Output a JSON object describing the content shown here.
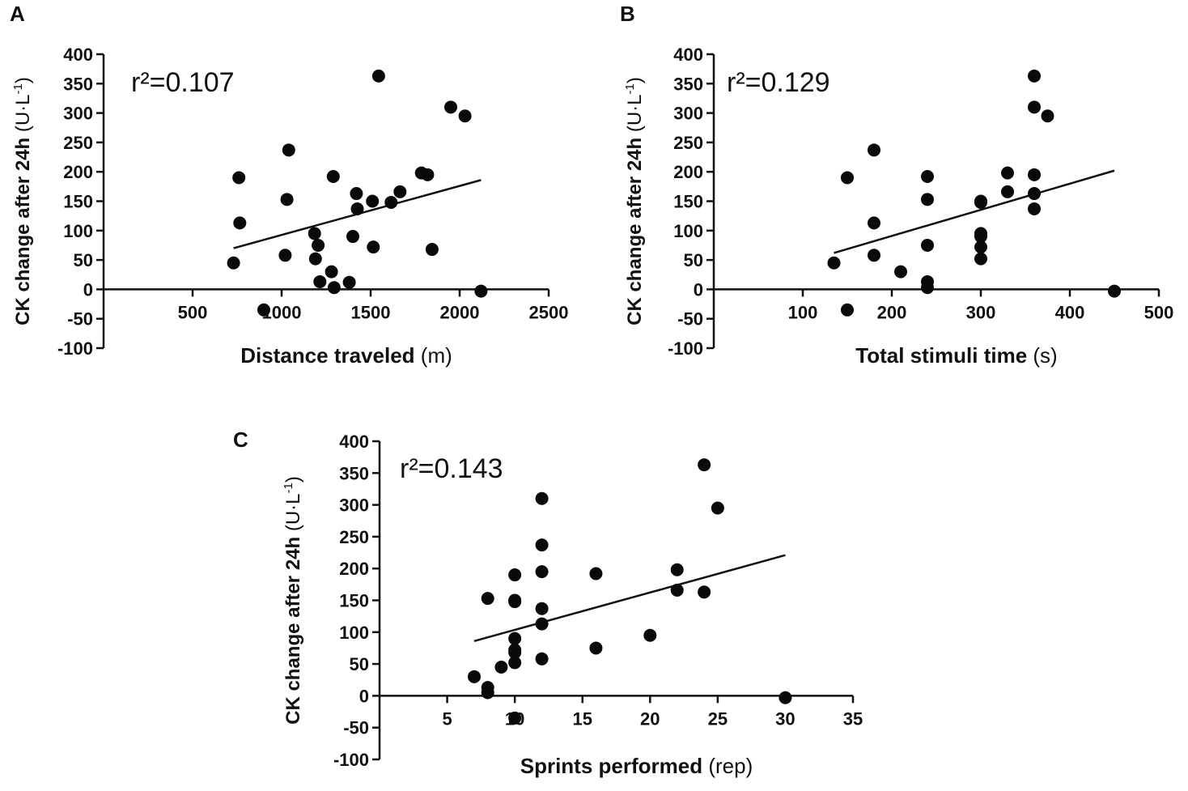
{
  "chart_data": [
    {
      "type": "scatter",
      "panel": "A",
      "annotation": "r²=0.107",
      "xlabel": "Distance traveled",
      "xlabel_unit": "(m)",
      "ylabel": "CK change after 24h",
      "ylabel_unit": "(U·L",
      "ylabel_unit_sup": "-1",
      "ylabel_unit_close": ")",
      "xlim": [
        0,
        2500
      ],
      "ylim": [
        -100,
        400
      ],
      "xticks": [
        500,
        1000,
        1500,
        2000,
        2500
      ],
      "yticks": [
        -100,
        -50,
        0,
        50,
        100,
        150,
        200,
        250,
        300,
        350,
        400
      ],
      "grid": false,
      "points": [
        [
          730,
          45
        ],
        [
          760,
          190
        ],
        [
          765,
          113
        ],
        [
          900,
          -35
        ],
        [
          1020,
          58
        ],
        [
          1030,
          153
        ],
        [
          1040,
          237
        ],
        [
          1185,
          95
        ],
        [
          1190,
          52
        ],
        [
          1205,
          75
        ],
        [
          1215,
          13
        ],
        [
          1280,
          30
        ],
        [
          1290,
          192
        ],
        [
          1295,
          3
        ],
        [
          1380,
          12
        ],
        [
          1400,
          90
        ],
        [
          1420,
          163
        ],
        [
          1425,
          137
        ],
        [
          1510,
          150
        ],
        [
          1515,
          72
        ],
        [
          1545,
          363
        ],
        [
          1615,
          148
        ],
        [
          1665,
          166
        ],
        [
          1785,
          198
        ],
        [
          1820,
          195
        ],
        [
          1845,
          68
        ],
        [
          1950,
          310
        ],
        [
          2030,
          295
        ],
        [
          2120,
          -3
        ]
      ],
      "fit_line": [
        [
          730,
          70
        ],
        [
          2120,
          186
        ]
      ]
    },
    {
      "type": "scatter",
      "panel": "B",
      "annotation": "r²=0.129",
      "xlabel": "Total stimuli time",
      "xlabel_unit": "(s)",
      "ylabel": "CK change after 24h",
      "ylabel_unit": "(U·L",
      "ylabel_unit_sup": "-1",
      "ylabel_unit_close": ")",
      "xlim": [
        0,
        500
      ],
      "ylim": [
        -100,
        400
      ],
      "xticks": [
        100,
        200,
        300,
        400,
        500
      ],
      "yticks": [
        -100,
        -50,
        0,
        50,
        100,
        150,
        200,
        250,
        300,
        350,
        400
      ],
      "grid": false,
      "points": [
        [
          135,
          45
        ],
        [
          150,
          190
        ],
        [
          150,
          -35
        ],
        [
          180,
          237
        ],
        [
          180,
          113
        ],
        [
          180,
          58
        ],
        [
          210,
          30
        ],
        [
          240,
          192
        ],
        [
          240,
          153
        ],
        [
          240,
          75
        ],
        [
          240,
          13
        ],
        [
          240,
          3
        ],
        [
          300,
          150
        ],
        [
          300,
          148
        ],
        [
          300,
          95
        ],
        [
          300,
          90
        ],
        [
          300,
          72
        ],
        [
          300,
          52
        ],
        [
          330,
          198
        ],
        [
          330,
          166
        ],
        [
          360,
          363
        ],
        [
          360,
          310
        ],
        [
          360,
          195
        ],
        [
          360,
          163
        ],
        [
          360,
          137
        ],
        [
          375,
          295
        ],
        [
          450,
          -3
        ]
      ],
      "fit_line": [
        [
          135,
          62
        ],
        [
          450,
          202
        ]
      ]
    },
    {
      "type": "scatter",
      "panel": "C",
      "annotation": "r²=0.143",
      "xlabel": "Sprints performed",
      "xlabel_unit": "(rep)",
      "ylabel": "CK change after 24h",
      "ylabel_unit": "(U·L",
      "ylabel_unit_sup": "-1",
      "ylabel_unit_close": ")",
      "xlim": [
        0,
        35
      ],
      "ylim": [
        -100,
        400
      ],
      "xticks": [
        5,
        10,
        15,
        20,
        25,
        30,
        35
      ],
      "yticks": [
        -100,
        -50,
        0,
        50,
        100,
        150,
        200,
        250,
        300,
        350,
        400
      ],
      "grid": false,
      "points": [
        [
          7,
          30
        ],
        [
          8,
          153
        ],
        [
          8,
          13
        ],
        [
          8,
          5
        ],
        [
          9,
          45
        ],
        [
          10,
          190
        ],
        [
          10,
          150
        ],
        [
          10,
          148
        ],
        [
          10,
          90
        ],
        [
          10,
          72
        ],
        [
          10,
          68
        ],
        [
          10,
          52
        ],
        [
          10,
          -35
        ],
        [
          12,
          310
        ],
        [
          12,
          237
        ],
        [
          12,
          195
        ],
        [
          12,
          137
        ],
        [
          12,
          113
        ],
        [
          12,
          58
        ],
        [
          16,
          192
        ],
        [
          16,
          75
        ],
        [
          20,
          95
        ],
        [
          22,
          198
        ],
        [
          22,
          166
        ],
        [
          24,
          363
        ],
        [
          24,
          163
        ],
        [
          25,
          295
        ],
        [
          30,
          -3
        ]
      ],
      "fit_line": [
        [
          7,
          86
        ],
        [
          30,
          221
        ]
      ]
    }
  ]
}
